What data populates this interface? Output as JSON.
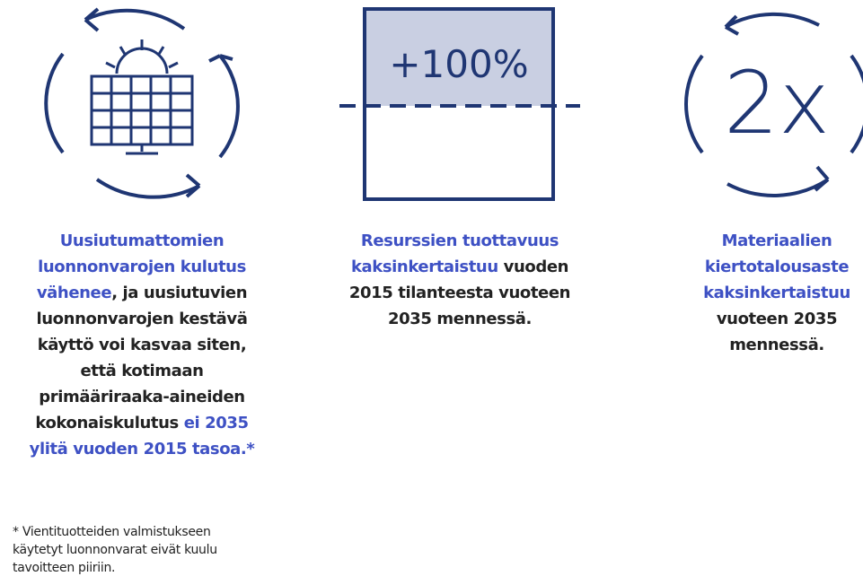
{
  "icons": {
    "box_label": "+100%",
    "circle_label": "2x"
  },
  "columns": [
    {
      "lines": [
        [
          {
            "text": "Uusiutumattomien",
            "emphasis": true
          }
        ],
        [
          {
            "text": "luonnonvarojen kulutus",
            "emphasis": true
          }
        ],
        [
          {
            "text": "vähenee",
            "emphasis": true
          },
          {
            "text": ", ja uusiutuvien",
            "emphasis": false
          }
        ],
        [
          {
            "text": "luonnonvarojen kestävä",
            "emphasis": false
          }
        ],
        [
          {
            "text": "käyttö voi kasvaa siten,",
            "emphasis": false
          }
        ],
        [
          {
            "text": "että kotimaan",
            "emphasis": false
          }
        ],
        [
          {
            "text": "primääriraaka-aineiden",
            "emphasis": false
          }
        ],
        [
          {
            "text": "kokonaiskulutus ",
            "emphasis": false
          },
          {
            "text": "ei 2035",
            "emphasis": true
          }
        ],
        [
          {
            "text": "ylitä vuoden 2015 tasoa.*",
            "emphasis": true
          }
        ]
      ]
    },
    {
      "lines": [
        [
          {
            "text": "Resurssien tuottavuus",
            "emphasis": true
          }
        ],
        [
          {
            "text": "kaksinkertaistuu",
            "emphasis": true
          },
          {
            "text": " vuoden",
            "emphasis": false
          }
        ],
        [
          {
            "text": "2015 tilanteesta vuoteen",
            "emphasis": false
          }
        ],
        [
          {
            "text": "2035 mennessä.",
            "emphasis": false
          }
        ]
      ]
    },
    {
      "lines": [
        [
          {
            "text": "Materiaalien",
            "emphasis": true
          }
        ],
        [
          {
            "text": "kiertotalousaste",
            "emphasis": true
          }
        ],
        [
          {
            "text": "kaksinkertaistuu",
            "emphasis": true
          }
        ],
        [
          {
            "text": "vuoteen 2035",
            "emphasis": false
          }
        ],
        [
          {
            "text": "mennessä.",
            "emphasis": false
          }
        ]
      ]
    }
  ],
  "footnote": [
    "* Vientituotteiden valmistukseen",
    "käytetyt luonnonvarat eivät kuulu",
    "tavoitteen piiriin."
  ]
}
